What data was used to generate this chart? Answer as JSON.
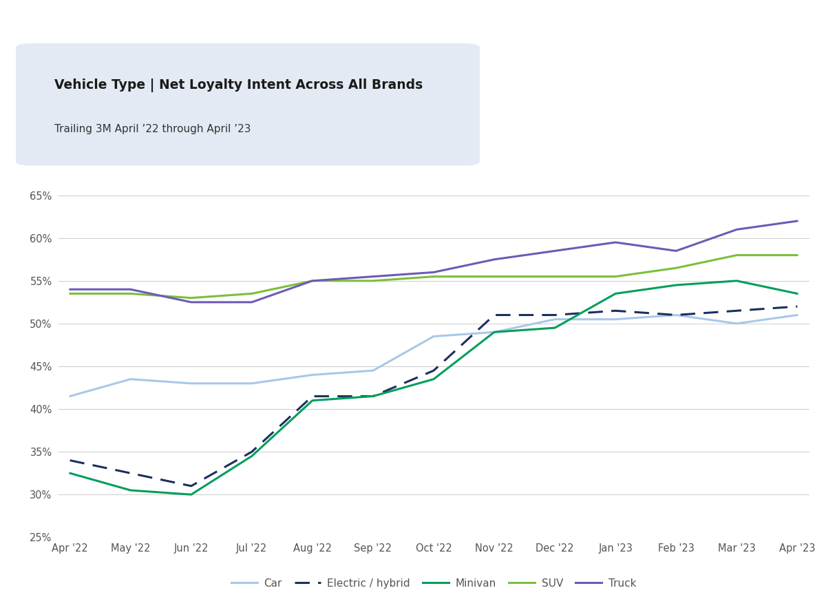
{
  "title": "Vehicle Type | Net Loyalty Intent Across All Brands",
  "subtitle": "Trailing 3M April ’22 through April ’23",
  "x_labels": [
    "Apr '22",
    "May '22",
    "Jun '22",
    "Jul '22",
    "Aug '22",
    "Sep '22",
    "Oct '22",
    "Nov '22",
    "Dec '22",
    "Jan '23",
    "Feb '23",
    "Mar '23",
    "Apr '23"
  ],
  "y_min": 25,
  "y_max": 65,
  "y_ticks": [
    25,
    30,
    35,
    40,
    45,
    50,
    55,
    60,
    65
  ],
  "car": [
    41.5,
    43.5,
    43.0,
    43.0,
    44.0,
    44.5,
    48.5,
    49.0,
    50.5,
    50.5,
    51.0,
    50.0,
    51.0
  ],
  "electric": [
    34.0,
    32.5,
    31.0,
    35.0,
    41.5,
    41.5,
    44.5,
    51.0,
    51.0,
    51.5,
    51.0,
    51.5,
    52.0
  ],
  "minivan": [
    32.5,
    30.5,
    30.0,
    34.5,
    41.0,
    41.5,
    43.5,
    49.0,
    49.5,
    53.5,
    54.5,
    55.0,
    53.5
  ],
  "suv": [
    53.5,
    53.5,
    53.0,
    53.5,
    55.0,
    55.0,
    55.5,
    55.5,
    55.5,
    55.5,
    56.5,
    58.0,
    58.0
  ],
  "truck": [
    54.0,
    54.0,
    52.5,
    52.5,
    55.0,
    55.5,
    56.0,
    57.5,
    58.5,
    59.5,
    58.5,
    61.0,
    62.0
  ],
  "car_color": "#a8c8e8",
  "electric_color": "#1b2f5e",
  "minivan_color": "#009e5c",
  "suv_color": "#7cbf3a",
  "truck_color": "#6b5bb5",
  "background_color": "#ffffff",
  "title_box_color": "#e4eaf4",
  "grid_color": "#cccccc",
  "tick_color": "#555555",
  "title_fontsize": 13.5,
  "subtitle_fontsize": 11,
  "legend_fontsize": 11
}
